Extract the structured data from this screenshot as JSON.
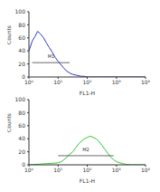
{
  "chart_data": [
    {
      "type": "line",
      "color": "#2a35c0",
      "log": "x",
      "x_label": "FL1-H",
      "y_label": "Counts",
      "x": [
        1,
        1.3,
        1.6,
        2,
        2.5,
        3.2,
        4,
        5,
        6.3,
        8,
        10,
        13,
        16,
        20,
        25,
        32,
        40,
        50,
        63,
        80,
        100,
        200,
        500,
        1000,
        10000
      ],
      "values": [
        40,
        55,
        62,
        70,
        66,
        60,
        52,
        45,
        38,
        30,
        24,
        18,
        13,
        9,
        6,
        4,
        3,
        2,
        1,
        1,
        0,
        0,
        0,
        0,
        0
      ],
      "xlim": [
        1,
        10000
      ],
      "xticks": [
        {
          "value": 1,
          "label": "10⁰"
        },
        {
          "value": 10,
          "label": "10¹"
        },
        {
          "value": 100,
          "label": "10²"
        },
        {
          "value": 1000,
          "label": "10³"
        },
        {
          "value": 10000,
          "label": "10⁴"
        }
      ],
      "ylim": [
        0,
        100
      ],
      "yticks": [
        0,
        20,
        40,
        60,
        80,
        100
      ],
      "annotations": [
        {
          "text": "M1",
          "x": [
            1.3,
            25
          ],
          "y": 22
        }
      ]
    },
    {
      "type": "line",
      "color": "#33c433",
      "log": "x",
      "x_label": "FL1-H",
      "y_label": "Counts",
      "x": [
        1,
        10,
        13,
        16,
        20,
        25,
        32,
        40,
        50,
        63,
        80,
        100,
        126,
        160,
        200,
        250,
        320,
        400,
        500,
        630,
        800,
        1000,
        1300,
        1600,
        2000,
        3000,
        10000
      ],
      "values": [
        0,
        3,
        5,
        8,
        12,
        16,
        20,
        26,
        32,
        36,
        40,
        42,
        44,
        42,
        40,
        36,
        30,
        24,
        18,
        12,
        8,
        5,
        3,
        2,
        1,
        0,
        0
      ],
      "xlim": [
        1,
        10000
      ],
      "xticks": [
        {
          "value": 1,
          "label": "10⁰"
        },
        {
          "value": 10,
          "label": "10¹"
        },
        {
          "value": 100,
          "label": "10²"
        },
        {
          "value": 1000,
          "label": "10³"
        },
        {
          "value": 10000,
          "label": "10⁴"
        }
      ],
      "ylim": [
        0,
        100
      ],
      "yticks": [
        0,
        20,
        40,
        60,
        80,
        100
      ],
      "annotations": [
        {
          "text": "M2",
          "x": [
            10,
            800
          ],
          "y": 14
        }
      ]
    }
  ]
}
